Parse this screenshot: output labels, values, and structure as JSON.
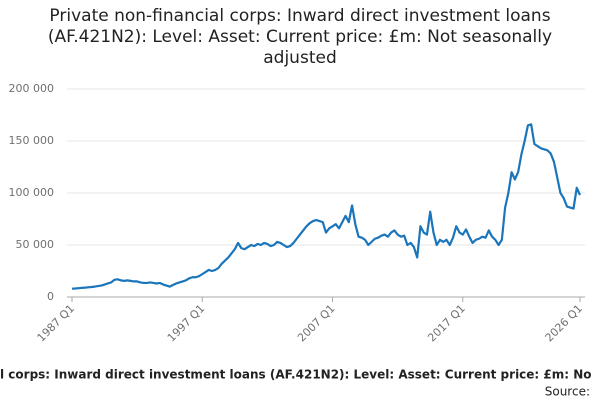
{
  "chart_data": {
    "type": "line",
    "title": "Private non-financial corps: Inward direct investment loans (AF.421N2): Level: Asset: Current price: £m: Not seasonally adjusted",
    "footer": "l corps: Inward direct investment loans (AF.421N2): Level: Asset: Current price: £m: No",
    "source": "Source:",
    "categories": [
      "1987 Q1",
      null,
      null,
      null,
      null,
      null,
      null,
      null,
      null,
      null,
      null,
      null,
      null,
      null,
      null,
      null,
      null,
      null,
      null,
      null,
      null,
      null,
      null,
      null,
      null,
      null,
      null,
      null,
      null,
      null,
      null,
      null,
      null,
      null,
      null,
      null,
      null,
      null,
      null,
      null,
      "1997 Q1",
      null,
      null,
      null,
      null,
      null,
      null,
      null,
      null,
      null,
      null,
      null,
      null,
      null,
      null,
      null,
      null,
      null,
      null,
      null,
      null,
      null,
      null,
      null,
      null,
      null,
      null,
      null,
      null,
      null,
      null,
      null,
      null,
      null,
      null,
      null,
      null,
      null,
      null,
      null,
      "2007 Q1",
      null,
      null,
      null,
      null,
      null,
      null,
      null,
      null,
      null,
      null,
      null,
      null,
      null,
      null,
      null,
      null,
      null,
      null,
      null,
      null,
      null,
      null,
      null,
      null,
      null,
      null,
      null,
      null,
      null,
      null,
      null,
      null,
      null,
      null,
      null,
      null,
      null,
      null,
      null,
      "2017 Q1",
      null,
      null,
      null,
      null,
      null,
      null,
      null,
      null,
      null,
      null,
      null,
      null,
      null,
      null,
      null,
      null,
      null,
      null,
      null,
      null,
      null,
      null,
      null,
      null,
      null,
      null,
      null,
      null,
      null,
      null,
      null,
      null,
      null,
      null,
      null,
      "2026 Q1"
    ],
    "series": [
      {
        "name": "AF.421N2",
        "color": "#1a75bb",
        "values": [
          8000,
          8200,
          8500,
          8800,
          9000,
          9300,
          9600,
          10000,
          10500,
          11000,
          12000,
          13000,
          14000,
          16500,
          17000,
          16000,
          15500,
          16000,
          15500,
          15000,
          15000,
          14000,
          13500,
          13500,
          14000,
          13500,
          13000,
          13500,
          12000,
          11000,
          10000,
          11500,
          13000,
          14000,
          15000,
          16000,
          18000,
          19000,
          19000,
          20000,
          22000,
          24000,
          26000,
          25000,
          26000,
          28000,
          32000,
          35000,
          38000,
          42000,
          46000,
          52000,
          47000,
          46000,
          48000,
          50000,
          49000,
          51000,
          50000,
          52000,
          51000,
          49000,
          50000,
          53000,
          52000,
          50000,
          48000,
          49000,
          52000,
          56000,
          60000,
          64000,
          68000,
          71000,
          73000,
          74000,
          73000,
          72000,
          62000,
          66000,
          68000,
          70000,
          66000,
          72000,
          78000,
          72000,
          88000,
          70000,
          58000,
          57000,
          55000,
          50000,
          53000,
          56000,
          57000,
          59000,
          60000,
          58000,
          62000,
          64000,
          60000,
          58000,
          59000,
          50000,
          52000,
          48000,
          38000,
          68000,
          62000,
          60000,
          82000,
          62000,
          50000,
          55000,
          53000,
          55000,
          50000,
          57000,
          68000,
          62000,
          60000,
          65000,
          58000,
          52000,
          55000,
          56000,
          58000,
          57000,
          64000,
          58000,
          55000,
          50000,
          55000,
          86000,
          100000,
          120000,
          113000,
          120000,
          137000,
          150000,
          165000,
          166000,
          147000,
          145000,
          143000,
          142000,
          141000,
          138000,
          130000,
          115000,
          100000,
          95000,
          87000,
          86000,
          85000,
          105000,
          98000
        ]
      }
    ],
    "ylim": [
      0,
      200000
    ],
    "yticks": [
      0,
      {
        "value": 50000,
        "label": "50 000"
      },
      {
        "value": 100000,
        "label": "100 000"
      },
      {
        "value": 150000,
        "label": "150 000"
      },
      {
        "value": 200000,
        "label": "200 000"
      }
    ],
    "grid": true
  }
}
